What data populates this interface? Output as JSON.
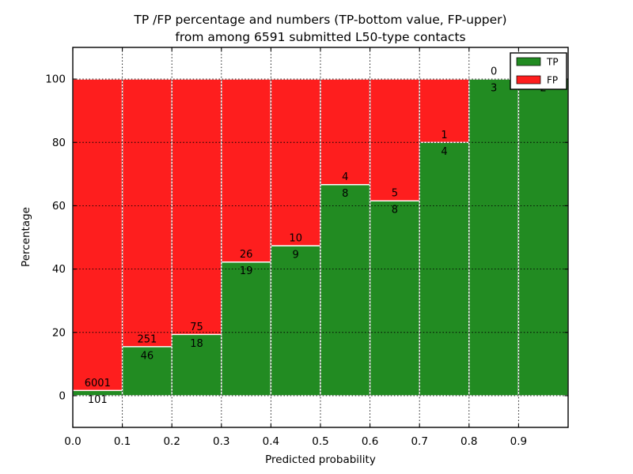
{
  "chart_data": {
    "type": "bar",
    "stacked": true,
    "title_line1": "TP /FP percentage and numbers (TP-bottom value, FP-upper)",
    "title_line2": "from among 6591 submitted L50-type contacts",
    "total_contacts": 6591,
    "xlabel": "Predicted probability",
    "ylabel": "Percentage",
    "xlim": [
      0.0,
      1.0
    ],
    "ylim": [
      -10,
      110
    ],
    "grid": true,
    "x_ticks": [
      0.0,
      0.1,
      0.2,
      0.3,
      0.4,
      0.5,
      0.6,
      0.7,
      0.8,
      0.9
    ],
    "x_tick_labels": [
      "0.0",
      "0.1",
      "0.2",
      "0.3",
      "0.4",
      "0.5",
      "0.6",
      "0.7",
      "0.8",
      "0.9"
    ],
    "y_ticks": [
      0,
      20,
      40,
      60,
      80,
      100
    ],
    "y_tick_labels": [
      "0",
      "20",
      "40",
      "60",
      "80",
      "100"
    ],
    "legend": {
      "position": "upper right",
      "items": [
        {
          "label": "TP",
          "color": "#228B22"
        },
        {
          "label": "FP",
          "color": "#FE1E1E"
        }
      ]
    },
    "colors": {
      "tp": "#228B22",
      "fp": "#FE1E1E",
      "bar_edge": "#ffffff",
      "grid": "#000000"
    },
    "bins": [
      {
        "x_start": 0.0,
        "x_end": 0.1,
        "tp_count": 101,
        "fp_count": 6001,
        "tp_pct": 1.66,
        "fp_pct": 98.34
      },
      {
        "x_start": 0.1,
        "x_end": 0.2,
        "tp_count": 46,
        "fp_count": 251,
        "tp_pct": 15.49,
        "fp_pct": 84.51
      },
      {
        "x_start": 0.2,
        "x_end": 0.3,
        "tp_count": 18,
        "fp_count": 75,
        "tp_pct": 19.35,
        "fp_pct": 80.65
      },
      {
        "x_start": 0.3,
        "x_end": 0.4,
        "tp_count": 19,
        "fp_count": 26,
        "tp_pct": 42.22,
        "fp_pct": 57.78
      },
      {
        "x_start": 0.4,
        "x_end": 0.5,
        "tp_count": 9,
        "fp_count": 10,
        "tp_pct": 47.37,
        "fp_pct": 52.63
      },
      {
        "x_start": 0.5,
        "x_end": 0.6,
        "tp_count": 8,
        "fp_count": 4,
        "tp_pct": 66.67,
        "fp_pct": 33.33
      },
      {
        "x_start": 0.6,
        "x_end": 0.7,
        "tp_count": 8,
        "fp_count": 5,
        "tp_pct": 61.54,
        "fp_pct": 38.46
      },
      {
        "x_start": 0.7,
        "x_end": 0.8,
        "tp_count": 4,
        "fp_count": 1,
        "tp_pct": 80.0,
        "fp_pct": 20.0
      },
      {
        "x_start": 0.8,
        "x_end": 0.9,
        "tp_count": 3,
        "fp_count": 0,
        "tp_pct": 100.0,
        "fp_pct": 0.0
      },
      {
        "x_start": 0.9,
        "x_end": 1.0,
        "tp_count": 2,
        "fp_count": 0,
        "tp_pct": 100.0,
        "fp_pct": 0.0
      }
    ]
  }
}
